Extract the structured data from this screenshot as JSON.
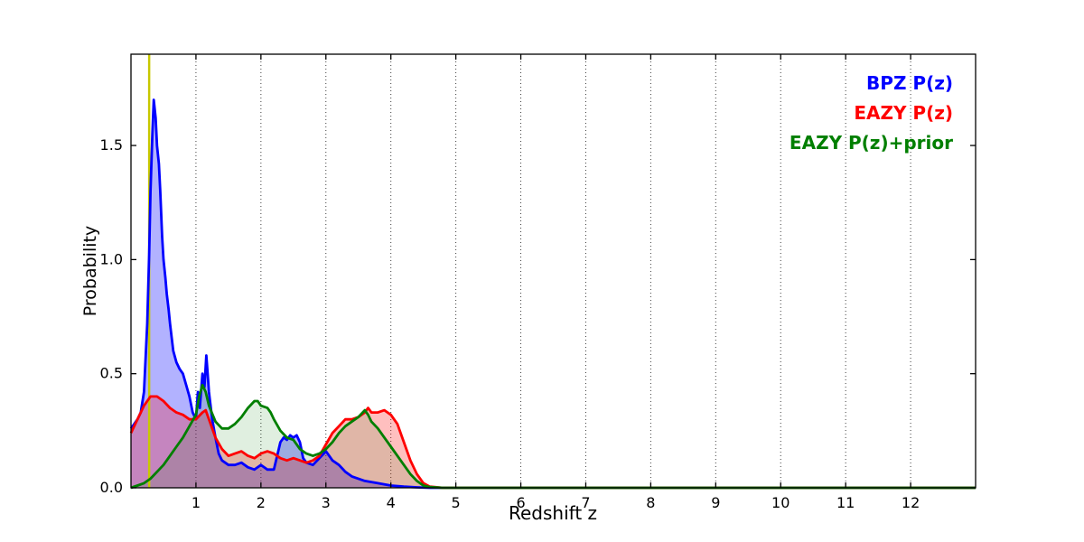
{
  "figure": {
    "background": "#ffffff"
  },
  "chart_data": {
    "type": "area",
    "title": "",
    "xlabel": "Redshift z",
    "ylabel": "Probability",
    "xlim": [
      0,
      13
    ],
    "ylim": [
      0,
      1.9
    ],
    "x_ticks": [
      1,
      2,
      3,
      4,
      5,
      6,
      7,
      8,
      9,
      10,
      11,
      12
    ],
    "y_ticks": [
      {
        "v": 0.0,
        "label": "0.0"
      },
      {
        "v": 0.5,
        "label": "0.5"
      },
      {
        "v": 1.0,
        "label": "1.0"
      },
      {
        "v": 1.5,
        "label": "1.5"
      }
    ],
    "grid": "vertical-dotted",
    "legend_position": "upper-right",
    "vline": {
      "x": 0.28,
      "color": "#c8c800",
      "width": 2.5
    },
    "series": [
      {
        "name": "BPZ P(z)",
        "color": "#0000ff",
        "fill_opacity": 0.3,
        "points": [
          [
            0,
            0.26
          ],
          [
            0.05,
            0.28
          ],
          [
            0.1,
            0.3
          ],
          [
            0.15,
            0.33
          ],
          [
            0.2,
            0.42
          ],
          [
            0.25,
            0.72
          ],
          [
            0.28,
            1.02
          ],
          [
            0.3,
            1.3
          ],
          [
            0.33,
            1.55
          ],
          [
            0.35,
            1.7
          ],
          [
            0.38,
            1.62
          ],
          [
            0.4,
            1.5
          ],
          [
            0.43,
            1.42
          ],
          [
            0.45,
            1.3
          ],
          [
            0.48,
            1.1
          ],
          [
            0.5,
            1.0
          ],
          [
            0.53,
            0.92
          ],
          [
            0.55,
            0.85
          ],
          [
            0.58,
            0.78
          ],
          [
            0.6,
            0.72
          ],
          [
            0.63,
            0.65
          ],
          [
            0.65,
            0.6
          ],
          [
            0.7,
            0.55
          ],
          [
            0.75,
            0.52
          ],
          [
            0.8,
            0.5
          ],
          [
            0.85,
            0.45
          ],
          [
            0.9,
            0.4
          ],
          [
            0.95,
            0.33
          ],
          [
            1.0,
            0.3
          ],
          [
            1.03,
            0.42
          ],
          [
            1.06,
            0.35
          ],
          [
            1.1,
            0.5
          ],
          [
            1.13,
            0.44
          ],
          [
            1.16,
            0.58
          ],
          [
            1.18,
            0.5
          ],
          [
            1.2,
            0.42
          ],
          [
            1.25,
            0.3
          ],
          [
            1.3,
            0.22
          ],
          [
            1.35,
            0.15
          ],
          [
            1.4,
            0.12
          ],
          [
            1.5,
            0.1
          ],
          [
            1.6,
            0.1
          ],
          [
            1.7,
            0.11
          ],
          [
            1.8,
            0.09
          ],
          [
            1.9,
            0.08
          ],
          [
            2.0,
            0.1
          ],
          [
            2.05,
            0.09
          ],
          [
            2.1,
            0.08
          ],
          [
            2.2,
            0.08
          ],
          [
            2.3,
            0.2
          ],
          [
            2.35,
            0.22
          ],
          [
            2.4,
            0.21
          ],
          [
            2.45,
            0.23
          ],
          [
            2.5,
            0.22
          ],
          [
            2.55,
            0.23
          ],
          [
            2.6,
            0.2
          ],
          [
            2.65,
            0.13
          ],
          [
            2.7,
            0.11
          ],
          [
            2.8,
            0.1
          ],
          [
            2.9,
            0.13
          ],
          [
            3.0,
            0.16
          ],
          [
            3.05,
            0.14
          ],
          [
            3.1,
            0.12
          ],
          [
            3.2,
            0.1
          ],
          [
            3.3,
            0.07
          ],
          [
            3.4,
            0.05
          ],
          [
            3.5,
            0.04
          ],
          [
            3.6,
            0.03
          ],
          [
            3.8,
            0.02
          ],
          [
            4.0,
            0.01
          ],
          [
            4.2,
            0.005
          ],
          [
            4.4,
            0.002
          ],
          [
            4.6,
            0
          ],
          [
            5.0,
            0
          ],
          [
            13,
            0
          ]
        ]
      },
      {
        "name": "EAZY P(z)",
        "color": "#ff0000",
        "fill_opacity": 0.25,
        "points": [
          [
            0,
            0.24
          ],
          [
            0.1,
            0.3
          ],
          [
            0.2,
            0.36
          ],
          [
            0.3,
            0.4
          ],
          [
            0.4,
            0.4
          ],
          [
            0.5,
            0.38
          ],
          [
            0.6,
            0.35
          ],
          [
            0.7,
            0.33
          ],
          [
            0.8,
            0.32
          ],
          [
            0.9,
            0.3
          ],
          [
            1.0,
            0.3
          ],
          [
            1.1,
            0.33
          ],
          [
            1.15,
            0.34
          ],
          [
            1.2,
            0.3
          ],
          [
            1.3,
            0.22
          ],
          [
            1.4,
            0.17
          ],
          [
            1.5,
            0.14
          ],
          [
            1.6,
            0.15
          ],
          [
            1.7,
            0.16
          ],
          [
            1.8,
            0.14
          ],
          [
            1.9,
            0.13
          ],
          [
            2.0,
            0.15
          ],
          [
            2.1,
            0.16
          ],
          [
            2.2,
            0.15
          ],
          [
            2.3,
            0.13
          ],
          [
            2.4,
            0.12
          ],
          [
            2.5,
            0.13
          ],
          [
            2.6,
            0.12
          ],
          [
            2.7,
            0.11
          ],
          [
            2.8,
            0.12
          ],
          [
            2.9,
            0.14
          ],
          [
            3.0,
            0.19
          ],
          [
            3.1,
            0.24
          ],
          [
            3.2,
            0.27
          ],
          [
            3.3,
            0.3
          ],
          [
            3.4,
            0.3
          ],
          [
            3.5,
            0.31
          ],
          [
            3.6,
            0.33
          ],
          [
            3.65,
            0.35
          ],
          [
            3.7,
            0.33
          ],
          [
            3.8,
            0.33
          ],
          [
            3.9,
            0.34
          ],
          [
            4.0,
            0.32
          ],
          [
            4.1,
            0.28
          ],
          [
            4.2,
            0.2
          ],
          [
            4.3,
            0.12
          ],
          [
            4.4,
            0.06
          ],
          [
            4.5,
            0.02
          ],
          [
            4.6,
            0.005
          ],
          [
            4.8,
            0
          ],
          [
            13,
            0
          ]
        ]
      },
      {
        "name": "EAZY P(z)+prior",
        "color": "#007f00",
        "fill_opacity": 0.12,
        "points": [
          [
            0,
            0.0
          ],
          [
            0.1,
            0.01
          ],
          [
            0.2,
            0.02
          ],
          [
            0.3,
            0.04
          ],
          [
            0.4,
            0.07
          ],
          [
            0.5,
            0.1
          ],
          [
            0.6,
            0.14
          ],
          [
            0.7,
            0.18
          ],
          [
            0.8,
            0.22
          ],
          [
            0.9,
            0.27
          ],
          [
            1.0,
            0.32
          ],
          [
            1.05,
            0.4
          ],
          [
            1.1,
            0.45
          ],
          [
            1.15,
            0.42
          ],
          [
            1.2,
            0.36
          ],
          [
            1.3,
            0.29
          ],
          [
            1.4,
            0.26
          ],
          [
            1.5,
            0.26
          ],
          [
            1.6,
            0.28
          ],
          [
            1.7,
            0.31
          ],
          [
            1.8,
            0.35
          ],
          [
            1.9,
            0.38
          ],
          [
            1.95,
            0.38
          ],
          [
            2.0,
            0.36
          ],
          [
            2.1,
            0.35
          ],
          [
            2.15,
            0.33
          ],
          [
            2.2,
            0.3
          ],
          [
            2.3,
            0.25
          ],
          [
            2.4,
            0.22
          ],
          [
            2.5,
            0.21
          ],
          [
            2.6,
            0.17
          ],
          [
            2.7,
            0.15
          ],
          [
            2.8,
            0.14
          ],
          [
            2.9,
            0.15
          ],
          [
            3.0,
            0.17
          ],
          [
            3.1,
            0.2
          ],
          [
            3.2,
            0.24
          ],
          [
            3.3,
            0.27
          ],
          [
            3.4,
            0.29
          ],
          [
            3.5,
            0.31
          ],
          [
            3.6,
            0.34
          ],
          [
            3.65,
            0.32
          ],
          [
            3.7,
            0.29
          ],
          [
            3.8,
            0.26
          ],
          [
            3.9,
            0.22
          ],
          [
            4.0,
            0.18
          ],
          [
            4.1,
            0.14
          ],
          [
            4.2,
            0.1
          ],
          [
            4.3,
            0.06
          ],
          [
            4.4,
            0.03
          ],
          [
            4.5,
            0.01
          ],
          [
            4.6,
            0.003
          ],
          [
            4.8,
            0
          ],
          [
            13,
            0
          ]
        ]
      }
    ]
  }
}
